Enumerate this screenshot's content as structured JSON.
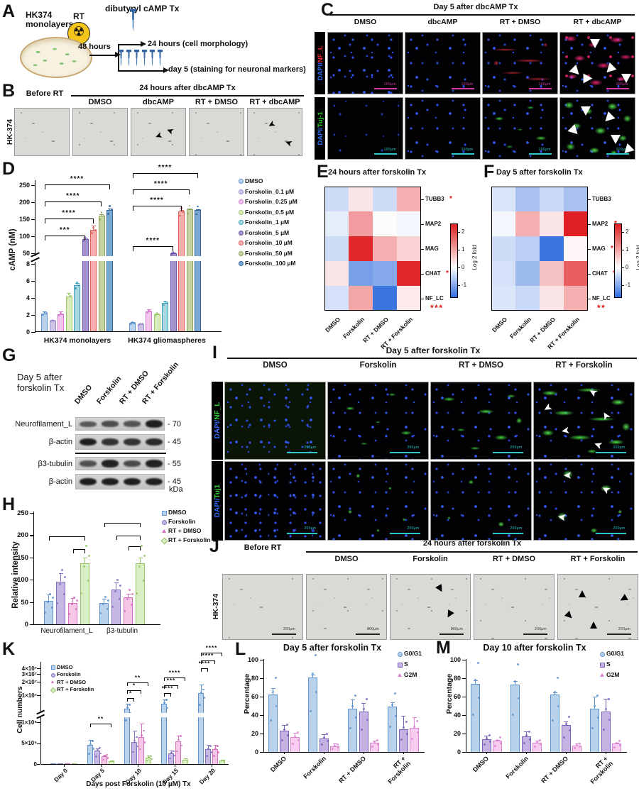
{
  "panels": {
    "A": {
      "label": "A",
      "cell": "HK374",
      "cell2": "monolayers",
      "rt": "RT",
      "t48": "48 hours",
      "tx": "dibutyryl cAMP Tx",
      "t24": "24 hours (cell morphology)",
      "day5": "day 5 (staining for neuronal markers)"
    },
    "B": {
      "label": "B",
      "before": "Before RT",
      "header": "24 hours after dbcAMP Tx",
      "cols": [
        "DMSO",
        "dbcAMP",
        "RT + DMSO",
        "RT + dbcAMP"
      ],
      "row_label": "HK-374"
    },
    "C": {
      "label": "C",
      "header": "Day 5 after dbcAMP Tx",
      "cols": [
        "DMSO",
        "dbcAMP",
        "RT + DMSO",
        "RT + dbcAMP"
      ],
      "rows": [
        {
          "pre": "DAPI/",
          "pre_color": "#2f6df0",
          "marker": "NF_L",
          "marker_color": "#ee2b2b"
        },
        {
          "pre": "DAPI/",
          "pre_color": "#2f6df0",
          "marker": "Tuj-1",
          "marker_color": "#2ecc2e"
        }
      ],
      "scale": "100µm"
    },
    "D": {
      "label": "D"
    },
    "E": {
      "label": "E"
    },
    "F": {
      "label": "F"
    },
    "G": {
      "label": "G",
      "title1": "Day 5 after",
      "title2": "forskolin Tx",
      "cols": [
        "DMSO",
        "Forskolin",
        "RT + DMSO",
        "RT + Forskolin"
      ],
      "unit": "kDa",
      "rows": [
        {
          "label": "Neurofilament_L",
          "kda": "- 70",
          "bands": [
            0.5,
            0.58,
            0.52,
            0.95
          ]
        },
        {
          "label": "β-actin",
          "kda": "- 45",
          "bands": [
            0.95,
            0.8,
            0.78,
            0.85
          ]
        },
        {
          "label": "β3-tubulin",
          "kda": "- 55",
          "bands": [
            0.55,
            0.92,
            0.6,
            0.92
          ]
        },
        {
          "label": "β-actin",
          "kda": "- 45",
          "bands": [
            0.97,
            0.95,
            0.95,
            0.95
          ]
        }
      ]
    },
    "H": {
      "label": "H"
    },
    "I": {
      "label": "I",
      "header": "Day 5 after forskolin Tx",
      "cols": [
        "DMSO",
        "Forskolin",
        "RT + DMSO",
        "RT + Forskolin"
      ],
      "rows": [
        {
          "pre": "DAPI/",
          "pre_color": "#2f6df0",
          "marker": "NF_L",
          "marker_color": "#35d13a"
        },
        {
          "pre": "DAPI/",
          "pre_color": "#2f6df0",
          "marker": "Tuj1",
          "marker_color": "#35d13a"
        }
      ],
      "scale": "200µm"
    },
    "J": {
      "label": "J",
      "before": "Before RT",
      "header": "24 hours after forskolin Tx",
      "cols": [
        "DMSO",
        "Forskolin",
        "RT + DMSO",
        "RT + Forskolin"
      ],
      "row_label": "HK-374",
      "scale": "200µm"
    },
    "K": {
      "label": "K"
    },
    "L": {
      "label": "L"
    },
    "M": {
      "label": "M"
    }
  },
  "icons": {
    "radiation": "☢",
    "arrow": "➤"
  },
  "chart_data": [
    {
      "id": "D",
      "type": "bar",
      "ylabel": "cAMP (nM)",
      "groups": [
        "HK374 monolayers",
        "HK374 gliomaspheres"
      ],
      "yticks_upper": [
        "250",
        "200",
        "150",
        "100",
        "50"
      ],
      "yticks_lower": [
        "8",
        "6",
        "4",
        "2",
        "0"
      ],
      "series": [
        {
          "name": "DMSO",
          "fill": "#b9d2ec",
          "border": "#5e93cd",
          "values": [
            2.2,
            1.05
          ],
          "err": [
            0.25,
            0.15
          ]
        },
        {
          "name": "Forskolin_0.1 µM",
          "fill": "#cec4e8",
          "border": "#9d8cd0",
          "values": [
            1.35,
            0.95
          ],
          "err": [
            0.1,
            0.08
          ]
        },
        {
          "name": "Forskolin_0.25 µM",
          "fill": "#f4c6ee",
          "border": "#d878d2",
          "values": [
            2.1,
            2.4
          ],
          "err": [
            0.3,
            0.25
          ]
        },
        {
          "name": "Forskolin_0.5 µM",
          "fill": "#d9edbc",
          "border": "#9cc86b",
          "values": [
            4.2,
            2.1
          ],
          "err": [
            0.35,
            0.1
          ]
        },
        {
          "name": "Forskolin_1 µM",
          "fill": "#a9d8e2",
          "border": "#3aa3ba",
          "values": [
            5.5,
            3.4
          ],
          "err": [
            0.25,
            0.15
          ]
        },
        {
          "name": "Forskolin_5 µM",
          "fill": "#a393cd",
          "border": "#6b55a8",
          "values": [
            92,
            50
          ],
          "err": [
            3,
            2
          ]
        },
        {
          "name": "Forskolin_10 µM",
          "fill": "#f5aeae",
          "border": "#e25c5c",
          "values": [
            118,
            172
          ],
          "err": [
            13,
            5
          ]
        },
        {
          "name": "Forskolin_50 µM",
          "fill": "#c6d3a2",
          "border": "#8aa45c",
          "values": [
            160,
            179
          ],
          "err": [
            5,
            2
          ]
        },
        {
          "name": "Forskolin_100 µM",
          "fill": "#79a8d2",
          "border": "#2f6398",
          "values": [
            178,
            177
          ],
          "err": [
            3,
            3
          ]
        }
      ],
      "sig": [
        {
          "group": 0,
          "to": 5,
          "label": "***"
        },
        {
          "group": 0,
          "to": 6,
          "label": "****"
        },
        {
          "group": 0,
          "to": 7,
          "label": "****"
        },
        {
          "group": 0,
          "to": 8,
          "label": "****"
        },
        {
          "group": 1,
          "to": 5,
          "label": "****"
        },
        {
          "group": 1,
          "to": 6,
          "label": "****"
        },
        {
          "group": 1,
          "to": 7,
          "label": "****"
        },
        {
          "group": 1,
          "to": 8,
          "label": "****"
        }
      ]
    },
    {
      "id": "E",
      "type": "heatmap",
      "title": "24 hours after forskolin Tx",
      "rows": [
        "TUBB3",
        "MAP2",
        "MAG",
        "CHAT",
        "NF_LC"
      ],
      "row_sig": [
        "*",
        "",
        "",
        "*",
        "***"
      ],
      "cols": [
        "DMSO",
        "Forskolin",
        "RT + DMSO",
        "RT + Forskolin"
      ],
      "values": [
        [
          -0.4,
          0.3,
          -0.4,
          0.9
        ],
        [
          -0.2,
          1.1,
          0.05,
          -0.1
        ],
        [
          -0.4,
          2.4,
          0.9,
          0.5
        ],
        [
          0.3,
          -1.1,
          -1.0,
          2.4
        ],
        [
          -0.35,
          1.0,
          -1.6,
          0.25
        ]
      ],
      "colorbar": {
        "label": "Log 2 fold",
        "ticks": [
          "2",
          "1",
          "0",
          "-1"
        ]
      }
    },
    {
      "id": "F",
      "type": "heatmap",
      "title": "Day 5 after forskolin Tx",
      "rows": [
        "TUBB3",
        "MAP2",
        "MAG",
        "CHAT",
        "NF_LC"
      ],
      "row_sig": [
        "",
        "*",
        "*",
        "*",
        "**"
      ],
      "cols": [
        "DMSO",
        "Forskolin",
        "RT + DMSO",
        "RT + Forskolin"
      ],
      "values": [
        [
          -0.3,
          -0.7,
          -0.45,
          -0.7
        ],
        [
          -0.1,
          0.9,
          0.3,
          2.5
        ],
        [
          -0.4,
          -0.55,
          -1.6,
          0.1
        ],
        [
          -0.35,
          -0.8,
          0.7,
          1.8
        ],
        [
          -0.3,
          -0.45,
          0.3,
          0.9
        ]
      ],
      "colorbar": {
        "label": "Log 2 fold",
        "ticks": [
          "2",
          "1",
          "0",
          "-1"
        ]
      }
    },
    {
      "id": "H",
      "type": "bar",
      "ylabel": "Relative intensity",
      "categories": [
        "Neurofilament_L",
        "β3-tubulin"
      ],
      "yticks": [
        "250",
        "200",
        "150",
        "100",
        "50",
        "0"
      ],
      "series": [
        {
          "name": "DMSO",
          "fill": "#b9d2ec",
          "border": "#5e93cd",
          "values": [
            53,
            48
          ],
          "err": [
            14,
            10
          ]
        },
        {
          "name": "Forskolin",
          "fill": "#c6b8e4",
          "border": "#8570bf",
          "values": [
            95,
            78
          ],
          "err": [
            19,
            16
          ]
        },
        {
          "name": "RT + DMSO",
          "fill": "#f6c6e6",
          "border": "#d76fbe",
          "values": [
            47,
            60
          ],
          "err": [
            12,
            8
          ]
        },
        {
          "name": "RT + Forskolin",
          "fill": "#daeec4",
          "border": "#96c568",
          "values": [
            137,
            137
          ],
          "err": [
            12,
            12
          ]
        }
      ]
    },
    {
      "id": "K",
      "type": "bar",
      "ylabel": "Cell numbers",
      "xlabel": "Days post Forskolin (10 µM) Tx",
      "categories": [
        "Day 0",
        "Day 5",
        "Day 10",
        "Day 15",
        "Day 20"
      ],
      "yticks_upper": [
        "4×10⁷",
        "3×10⁷",
        "2×10⁷",
        "1×10⁷"
      ],
      "yticks_lower": [
        "1×10⁶",
        "5×10⁵",
        "0"
      ],
      "series": [
        {
          "name": "DMSO",
          "fill": "#b9d2ec",
          "border": "#5e93cd",
          "values": [
            20000,
            450000,
            5000000,
            6500000,
            11000000
          ],
          "err": [
            5000,
            120000,
            1500000,
            1500000,
            6000000
          ]
        },
        {
          "name": "Forskolin",
          "fill": "#c6b8e4",
          "border": "#8570bf",
          "values": [
            20000,
            320000,
            530000,
            250000,
            350000
          ],
          "err": [
            5000,
            60000,
            260000,
            80000,
            100000
          ]
        },
        {
          "name": "RT + DMSO",
          "fill": "#f6c6e6",
          "border": "#d76fbe",
          "values": [
            20000,
            180000,
            650000,
            550000,
            350000
          ],
          "err": [
            5000,
            40000,
            320000,
            120000,
            100000
          ]
        },
        {
          "name": "RT + Forskolin",
          "fill": "#daeec4",
          "border": "#96c568",
          "values": [
            15000,
            60000,
            150000,
            100000,
            80000
          ],
          "err": [
            4000,
            20000,
            60000,
            30000,
            20000
          ]
        }
      ],
      "sig": [
        {
          "cat": 1,
          "to": 3,
          "label": "**"
        },
        {
          "cat": 2,
          "to": 1,
          "label": "*"
        },
        {
          "cat": 2,
          "to": 2,
          "label": "*"
        },
        {
          "cat": 2,
          "to": 3,
          "label": "**"
        },
        {
          "cat": 3,
          "to": 1,
          "label": "****"
        },
        {
          "cat": 3,
          "to": 2,
          "label": "***"
        },
        {
          "cat": 3,
          "to": 3,
          "label": "****"
        },
        {
          "cat": 4,
          "to": 1,
          "label": "****"
        },
        {
          "cat": 4,
          "to": 2,
          "label": "****"
        },
        {
          "cat": 4,
          "to": 3,
          "label": "****"
        }
      ]
    },
    {
      "id": "L",
      "type": "bar",
      "title": "Day 5 after forskolin Tx",
      "ylabel": "Percentage",
      "categories": [
        "DMSO",
        "Forskolin",
        "RT + DMSO",
        "RT + Forskolin"
      ],
      "yticks": [
        "100",
        "80",
        "60",
        "40",
        "20",
        "0"
      ],
      "series": [
        {
          "name": "G0/G1",
          "fill": "#b9d2ec",
          "border": "#5e93cd",
          "values": [
            62,
            81,
            47,
            49
          ],
          "err": [
            7,
            3,
            10,
            5
          ]
        },
        {
          "name": "S",
          "fill": "#c3b2e2",
          "border": "#7b61b8",
          "values": [
            23,
            15,
            44,
            25
          ],
          "err": [
            6,
            4,
            9,
            14
          ]
        },
        {
          "name": "G2M",
          "fill": "#f8cdef",
          "border": "#da85d2",
          "values": [
            16,
            6,
            10,
            26
          ],
          "err": [
            5,
            3,
            2,
            12
          ]
        }
      ]
    },
    {
      "id": "M",
      "type": "bar",
      "title": "Day 10 after forskolin Tx",
      "ylabel": "Percentage",
      "categories": [
        "DMSO",
        "Forskolin",
        "RT + DMSO",
        "RT + Forskolin"
      ],
      "yticks": [
        "100",
        "80",
        "60",
        "40",
        "20",
        "0"
      ],
      "series": [
        {
          "name": "G0/G1",
          "fill": "#b9d2ec",
          "border": "#5e93cd",
          "values": [
            74,
            73,
            62,
            47
          ],
          "err": [
            4,
            4,
            3,
            13
          ]
        },
        {
          "name": "S",
          "fill": "#c3b2e2",
          "border": "#7b61b8",
          "values": [
            14,
            17,
            29,
            44
          ],
          "err": [
            4,
            5,
            4,
            14
          ]
        },
        {
          "name": "G2M",
          "fill": "#f8cdef",
          "border": "#da85d2",
          "values": [
            12,
            10,
            7,
            9
          ],
          "err": [
            1,
            2,
            2,
            1
          ]
        }
      ]
    }
  ]
}
